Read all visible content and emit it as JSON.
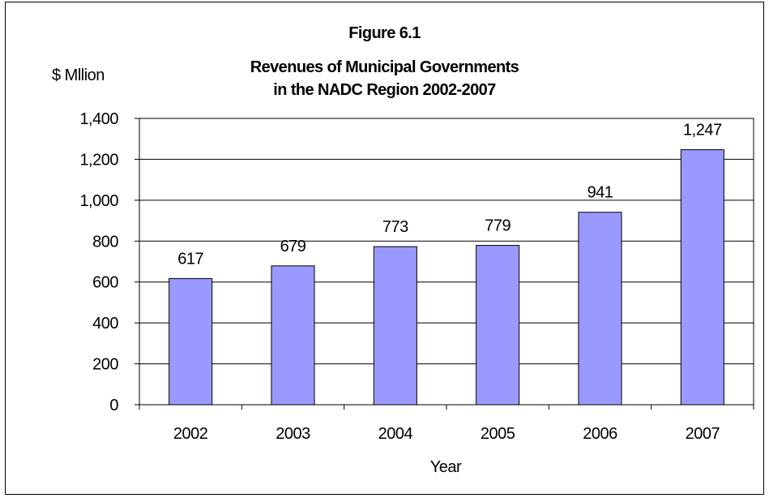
{
  "chart_data": {
    "type": "bar",
    "title": [
      "Figure 6.1",
      "Revenues of Municipal Governments",
      "in the NADC Region 2002-2007"
    ],
    "ylabel": "$ Mllion",
    "xlabel": "Year",
    "categories": [
      "2002",
      "2003",
      "2004",
      "2005",
      "2006",
      "2007"
    ],
    "values": [
      617,
      679,
      773,
      779,
      941,
      1247
    ],
    "data_labels": [
      "617",
      "679",
      "773",
      "779",
      "941",
      "1,247"
    ],
    "ylim": [
      0,
      1400
    ],
    "yticks": [
      0,
      200,
      400,
      600,
      800,
      1000,
      1200,
      1400
    ],
    "ytick_labels": [
      "0",
      "200",
      "400",
      "600",
      "800",
      "1,000",
      "1,200",
      "1,400"
    ],
    "grid": true,
    "legend": "none",
    "bar_color": "#9999ff",
    "bar_edge_color": "#000000"
  }
}
